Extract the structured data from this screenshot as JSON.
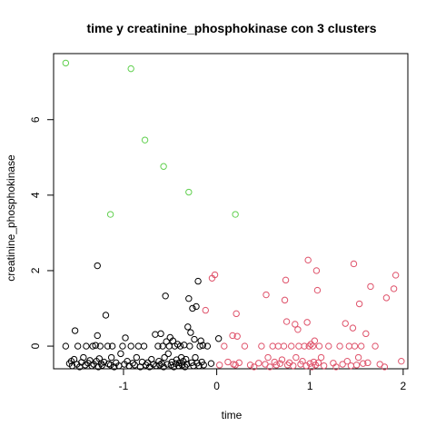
{
  "chart_data": {
    "type": "scatter",
    "title": "time  y  creatinine_phosphokinase con  3  clusters",
    "xlabel": "time",
    "ylabel": "creatinine_phosphokinase",
    "xlim": [
      -1.75,
      2.05
    ],
    "ylim": [
      -0.6,
      7.75
    ],
    "xticks": [
      -1,
      0,
      1,
      2
    ],
    "yticks": [
      0,
      2,
      4,
      6
    ],
    "grid": false,
    "legend": "none",
    "marker": "open-circle",
    "series": [
      {
        "color": "#000000",
        "points": [
          [
            -1.62,
            0.0
          ],
          [
            -1.58,
            -0.46
          ],
          [
            -1.56,
            -0.4
          ],
          [
            -1.55,
            -0.52
          ],
          [
            -1.53,
            -0.35
          ],
          [
            -1.52,
            0.41
          ],
          [
            -1.5,
            -0.48
          ],
          [
            -1.49,
            0.0
          ],
          [
            -1.47,
            -0.55
          ],
          [
            -1.45,
            -0.43
          ],
          [
            -1.43,
            -0.3
          ],
          [
            -1.41,
            -0.5
          ],
          [
            -1.4,
            0.0
          ],
          [
            -1.38,
            -0.45
          ],
          [
            -1.36,
            -0.38
          ],
          [
            -1.34,
            -0.52
          ],
          [
            -1.33,
            0.0
          ],
          [
            -1.32,
            -0.48
          ],
          [
            -1.3,
            0.02
          ],
          [
            -1.29,
            -0.4
          ],
          [
            -1.28,
            2.13
          ],
          [
            -1.28,
            0.28
          ],
          [
            -1.27,
            -0.55
          ],
          [
            -1.26,
            -0.33
          ],
          [
            -1.25,
            0.0
          ],
          [
            -1.24,
            -0.46
          ],
          [
            -1.23,
            -0.51
          ],
          [
            -1.21,
            -0.42
          ],
          [
            -1.19,
            0.82
          ],
          [
            -1.17,
            0.0
          ],
          [
            -1.16,
            -0.47
          ],
          [
            -1.14,
            -0.5
          ],
          [
            -1.13,
            -0.3
          ],
          [
            -1.12,
            0.0
          ],
          [
            -1.1,
            -0.55
          ],
          [
            -1.08,
            -0.44
          ],
          [
            -1.05,
            -0.52
          ],
          [
            -1.03,
            -0.2
          ],
          [
            -1.01,
            0.0
          ],
          [
            -0.99,
            -0.48
          ],
          [
            -0.98,
            0.22
          ],
          [
            -0.96,
            -0.4
          ],
          [
            -0.94,
            -0.52
          ],
          [
            -0.92,
            0.0
          ],
          [
            -0.9,
            -0.45
          ],
          [
            -0.88,
            -0.5
          ],
          [
            -0.86,
            -0.3
          ],
          [
            -0.84,
            0.0
          ],
          [
            -0.82,
            -0.55
          ],
          [
            -0.8,
            -0.42
          ],
          [
            -0.78,
            0.0
          ],
          [
            -0.76,
            -0.5
          ],
          [
            -0.74,
            -0.44
          ],
          [
            -0.72,
            -0.55
          ],
          [
            -0.7,
            -0.35
          ],
          [
            -0.68,
            -0.48
          ],
          [
            -0.66,
            0.31
          ],
          [
            -0.65,
            -0.52
          ],
          [
            -0.63,
            0.0
          ],
          [
            -0.62,
            -0.4
          ],
          [
            -0.61,
            -0.5
          ],
          [
            -0.6,
            0.33
          ],
          [
            -0.59,
            -0.46
          ],
          [
            -0.58,
            0.0
          ],
          [
            -0.57,
            -0.55
          ],
          [
            -0.56,
            -0.3
          ],
          [
            -0.55,
            1.33
          ],
          [
            -0.54,
            0.12
          ],
          [
            -0.53,
            -0.48
          ],
          [
            -0.52,
            -0.2
          ],
          [
            -0.51,
            0.0
          ],
          [
            -0.5,
            0.23
          ],
          [
            -0.49,
            -0.5
          ],
          [
            -0.48,
            -0.42
          ],
          [
            -0.47,
            0.14
          ],
          [
            -0.46,
            -0.55
          ],
          [
            -0.45,
            0.0
          ],
          [
            -0.44,
            -0.46
          ],
          [
            -0.43,
            -0.36
          ],
          [
            -0.42,
            0.05
          ],
          [
            -0.41,
            -0.52
          ],
          [
            -0.4,
            -0.44
          ],
          [
            -0.39,
            0.0
          ],
          [
            -0.38,
            -0.3
          ],
          [
            -0.37,
            -0.5
          ],
          [
            -0.36,
            -0.4
          ],
          [
            -0.35,
            0.03
          ],
          [
            -0.34,
            -0.55
          ],
          [
            -0.33,
            -0.35
          ],
          [
            -0.32,
            -0.48
          ],
          [
            -0.31,
            0.51
          ],
          [
            -0.3,
            1.26
          ],
          [
            -0.29,
            0.0
          ],
          [
            -0.28,
            0.36
          ],
          [
            -0.27,
            -0.44
          ],
          [
            -0.26,
            1.0
          ],
          [
            -0.25,
            -0.52
          ],
          [
            -0.24,
            0.18
          ],
          [
            -0.23,
            -0.3
          ],
          [
            -0.22,
            1.05
          ],
          [
            -0.21,
            -0.45
          ],
          [
            -0.2,
            1.72
          ],
          [
            -0.19,
            -0.52
          ],
          [
            -0.18,
            0.0
          ],
          [
            -0.17,
            0.14
          ],
          [
            -0.16,
            -0.42
          ],
          [
            -0.15,
            0.02
          ],
          [
            -0.14,
            -0.5
          ],
          [
            -0.1,
            0.0
          ],
          [
            -0.06,
            -0.46
          ],
          [
            0.02,
            0.2
          ]
        ]
      },
      {
        "color": "#DF536B",
        "points": [
          [
            -0.12,
            0.95
          ],
          [
            -0.05,
            1.8
          ],
          [
            -0.02,
            1.89
          ],
          [
            0.03,
            -0.5
          ],
          [
            0.08,
            0.0
          ],
          [
            0.12,
            -0.42
          ],
          [
            0.17,
            0.28
          ],
          [
            0.18,
            -0.48
          ],
          [
            0.2,
            -0.5
          ],
          [
            0.21,
            0.86
          ],
          [
            0.22,
            0.26
          ],
          [
            0.24,
            -0.44
          ],
          [
            0.3,
            0.0
          ],
          [
            0.36,
            -0.5
          ],
          [
            0.4,
            -0.55
          ],
          [
            0.45,
            -0.45
          ],
          [
            0.48,
            0.0
          ],
          [
            0.52,
            -0.48
          ],
          [
            0.53,
            1.36
          ],
          [
            0.55,
            -0.3
          ],
          [
            0.57,
            -0.55
          ],
          [
            0.6,
            0.0
          ],
          [
            0.62,
            -0.42
          ],
          [
            0.64,
            -0.5
          ],
          [
            0.66,
            0.0
          ],
          [
            0.68,
            -0.46
          ],
          [
            0.7,
            -0.36
          ],
          [
            0.72,
            0.0
          ],
          [
            0.73,
            1.22
          ],
          [
            0.74,
            1.75
          ],
          [
            0.75,
            0.65
          ],
          [
            0.76,
            -0.5
          ],
          [
            0.78,
            -0.44
          ],
          [
            0.8,
            0.0
          ],
          [
            0.82,
            -0.52
          ],
          [
            0.84,
            0.58
          ],
          [
            0.85,
            -0.3
          ],
          [
            0.87,
            0.44
          ],
          [
            0.88,
            0.0
          ],
          [
            0.9,
            -0.48
          ],
          [
            0.92,
            -0.4
          ],
          [
            0.94,
            0.0
          ],
          [
            0.96,
            -0.52
          ],
          [
            0.97,
            0.63
          ],
          [
            0.98,
            2.28
          ],
          [
            0.99,
            0.0
          ],
          [
            1.0,
            -0.46
          ],
          [
            1.01,
            0.05
          ],
          [
            1.02,
            -0.55
          ],
          [
            1.03,
            0.0
          ],
          [
            1.04,
            -0.42
          ],
          [
            1.05,
            0.14
          ],
          [
            1.06,
            -0.5
          ],
          [
            1.07,
            2.0
          ],
          [
            1.08,
            1.48
          ],
          [
            1.09,
            -0.44
          ],
          [
            1.1,
            0.0
          ],
          [
            1.12,
            -0.3
          ],
          [
            1.15,
            -0.52
          ],
          [
            1.2,
            0.0
          ],
          [
            1.25,
            -0.45
          ],
          [
            1.28,
            -0.55
          ],
          [
            1.32,
            0.0
          ],
          [
            1.35,
            -0.48
          ],
          [
            1.38,
            0.6
          ],
          [
            1.4,
            -0.4
          ],
          [
            1.42,
            0.0
          ],
          [
            1.44,
            -0.52
          ],
          [
            1.46,
            0.48
          ],
          [
            1.47,
            2.18
          ],
          [
            1.48,
            0.0
          ],
          [
            1.5,
            -0.5
          ],
          [
            1.52,
            -0.3
          ],
          [
            1.53,
            1.12
          ],
          [
            1.55,
            0.0
          ],
          [
            1.57,
            -0.46
          ],
          [
            1.6,
            0.33
          ],
          [
            1.62,
            -0.44
          ],
          [
            1.65,
            1.58
          ],
          [
            1.7,
            0.0
          ],
          [
            1.75,
            -0.48
          ],
          [
            1.8,
            -0.55
          ],
          [
            1.82,
            1.28
          ],
          [
            1.9,
            1.52
          ],
          [
            1.92,
            1.88
          ],
          [
            1.98,
            -0.4
          ]
        ]
      },
      {
        "color": "#61D04F",
        "points": [
          [
            -1.62,
            7.5
          ],
          [
            -0.92,
            7.35
          ],
          [
            -0.77,
            5.46
          ],
          [
            -0.57,
            4.76
          ],
          [
            -0.3,
            4.08
          ],
          [
            -1.14,
            3.49
          ],
          [
            0.2,
            3.49
          ]
        ]
      }
    ]
  }
}
